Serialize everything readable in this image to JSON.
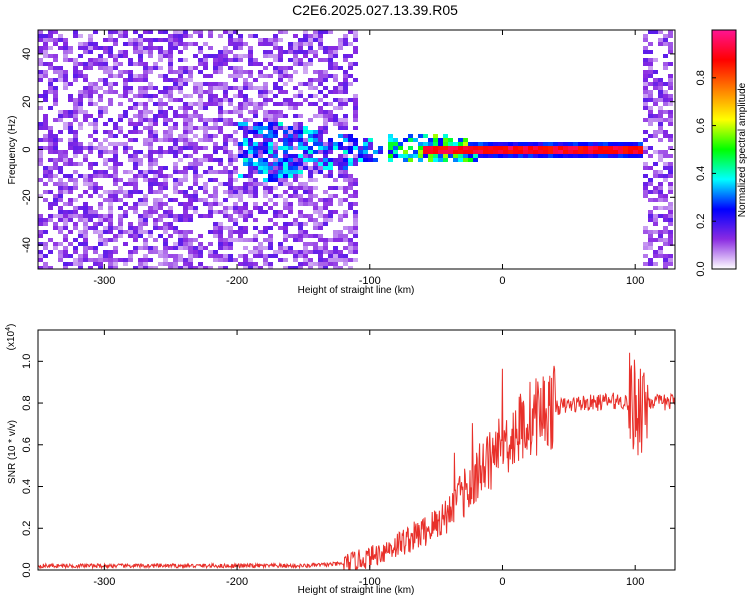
{
  "title": "C2E6.2025.027.13.39.R05",
  "colors": {
    "snr_line": "#e8302a",
    "axis": "#000000"
  },
  "chart_data": [
    {
      "type": "heatmap",
      "title": "",
      "xlabel": "Height of straight line (km)",
      "ylabel": "Frequency (Hz)",
      "xlim": [
        -350,
        130
      ],
      "ylim": [
        -50,
        50
      ],
      "x_ticks": [
        "-300",
        "-200",
        "-100",
        "0",
        "100"
      ],
      "y_ticks": [
        "-40",
        "-20",
        "0",
        "20",
        "40"
      ],
      "colorbar": {
        "label": "Normalized spectral amplitude",
        "range": [
          0,
          1
        ],
        "ticks": [
          "0.0",
          "0.2",
          "0.4",
          "0.6",
          "0.8"
        ],
        "colormap": [
          "#ffffff",
          "#8a2be2",
          "#0000ff",
          "#00ffff",
          "#00ff00",
          "#ffff00",
          "#ff8000",
          "#ff0000",
          "#ff1493"
        ]
      },
      "features": {
        "noise_region_km": [
          -350,
          -110
        ],
        "carrier_frequency_hz": 0,
        "strong_carrier_km": [
          -80,
          105
        ],
        "noise_band_km": [
          105,
          128
        ]
      }
    },
    {
      "type": "line",
      "title": "",
      "xlabel": "Height of straight line (km)",
      "ylabel": "SNR (10 * v/v)",
      "exponent_label": "(x10",
      "exponent_power": "4",
      "xlim": [
        -350,
        130
      ],
      "ylim": [
        0,
        1.15
      ],
      "x_ticks": [
        "-300",
        "-200",
        "-100",
        "0",
        "100"
      ],
      "y_ticks": [
        "0.0",
        "0.2",
        "0.4",
        "0.6",
        "0.8",
        "1.0"
      ],
      "series": [
        {
          "x": [
            -350,
            -300,
            -250,
            -200,
            -150,
            -120,
            -100,
            -90,
            -80,
            -70,
            -60,
            -50,
            -40,
            -30,
            -20,
            -10,
            0,
            10,
            20,
            30,
            40,
            50,
            60,
            70,
            80,
            90,
            95,
            100,
            105,
            110,
            120,
            130
          ],
          "y": [
            0.02,
            0.02,
            0.02,
            0.02,
            0.02,
            0.03,
            0.06,
            0.09,
            0.12,
            0.15,
            0.18,
            0.22,
            0.28,
            0.36,
            0.45,
            0.52,
            0.6,
            0.66,
            0.72,
            0.76,
            0.78,
            0.79,
            0.8,
            0.8,
            0.81,
            0.81,
            0.8,
            0.78,
            0.8,
            0.81,
            0.8,
            0.81
          ]
        }
      ]
    }
  ]
}
